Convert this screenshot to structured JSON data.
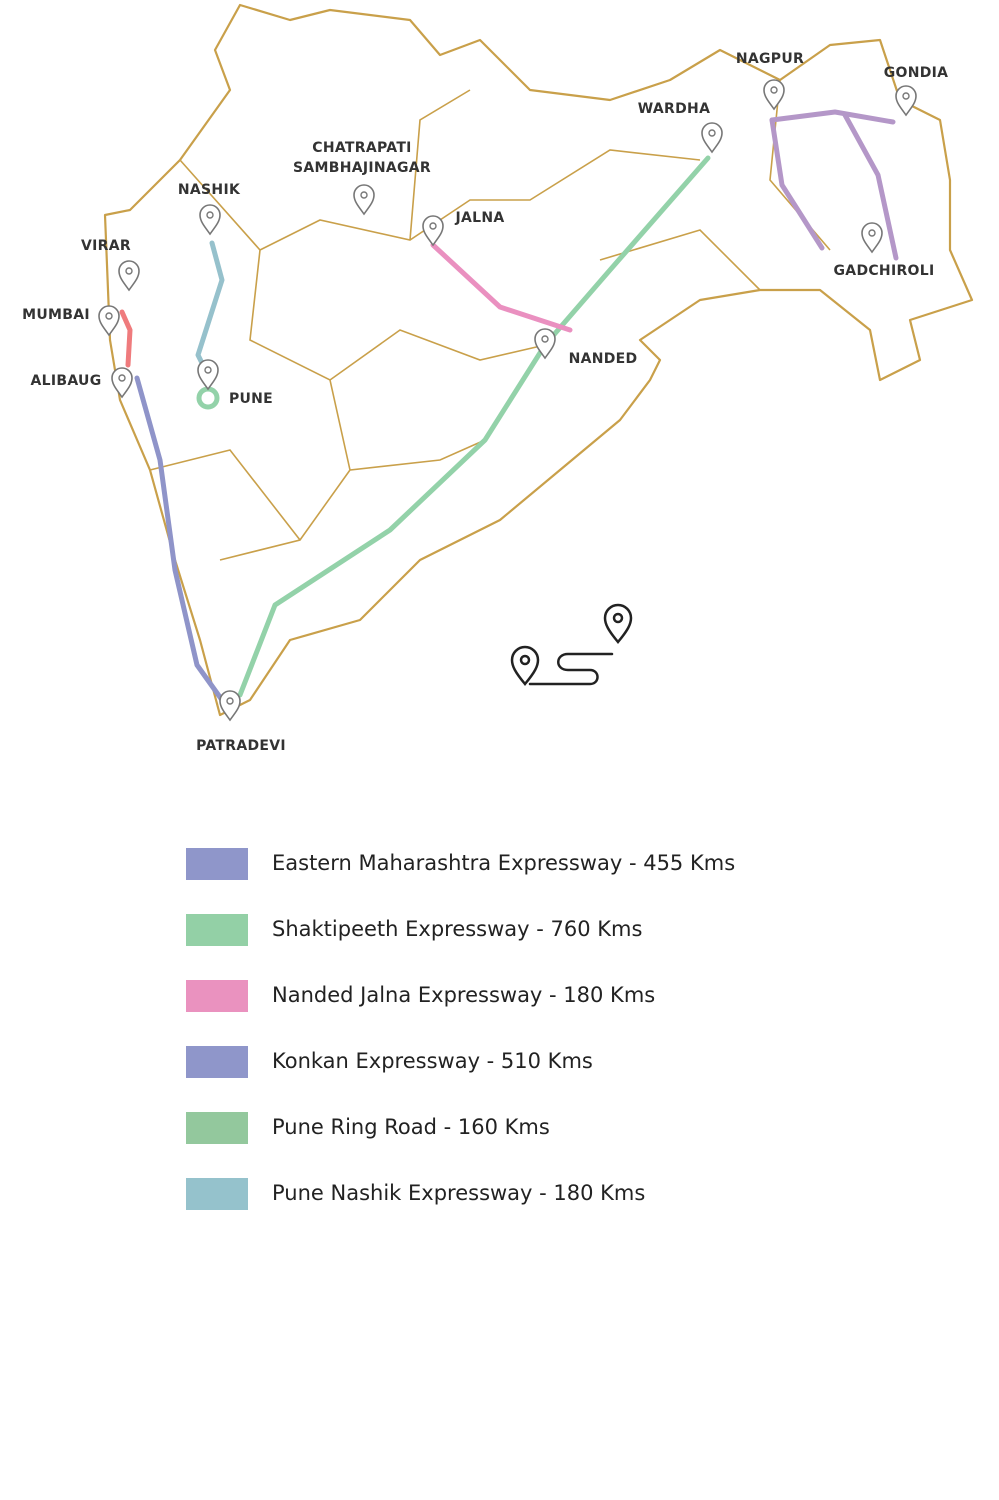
{
  "map": {
    "cities": [
      "NAGPUR",
      "GONDIA",
      "WARDHA",
      [
        "CHATRAPATI",
        "SAMBHAJINAGAR"
      ],
      "NASHIK",
      "JALNA",
      "VIRAR",
      "MUMBAI",
      "ALIBAUG",
      "NANDED",
      "PUNE",
      "GADCHIROLI",
      "PATRADEVI"
    ]
  },
  "legend": [
    {
      "label": "Eastern Maharashtra Expressway - 455 Kms",
      "color": "#8f96ca"
    },
    {
      "label": "Shaktipeeth Expressway - 760 Kms",
      "color": "#93d0a6"
    },
    {
      "label": "Nanded Jalna Expressway - 180 Kms",
      "color": "#ea92bf"
    },
    {
      "label": "Konkan Expressway - 510 Kms",
      "color": "#8f96ca"
    },
    {
      "label": "Pune Ring Road - 160 Kms",
      "color": "#93c89d"
    },
    {
      "label": "Pune Nashik Expressway - 180 Kms",
      "color": "#95c2cc"
    }
  ]
}
